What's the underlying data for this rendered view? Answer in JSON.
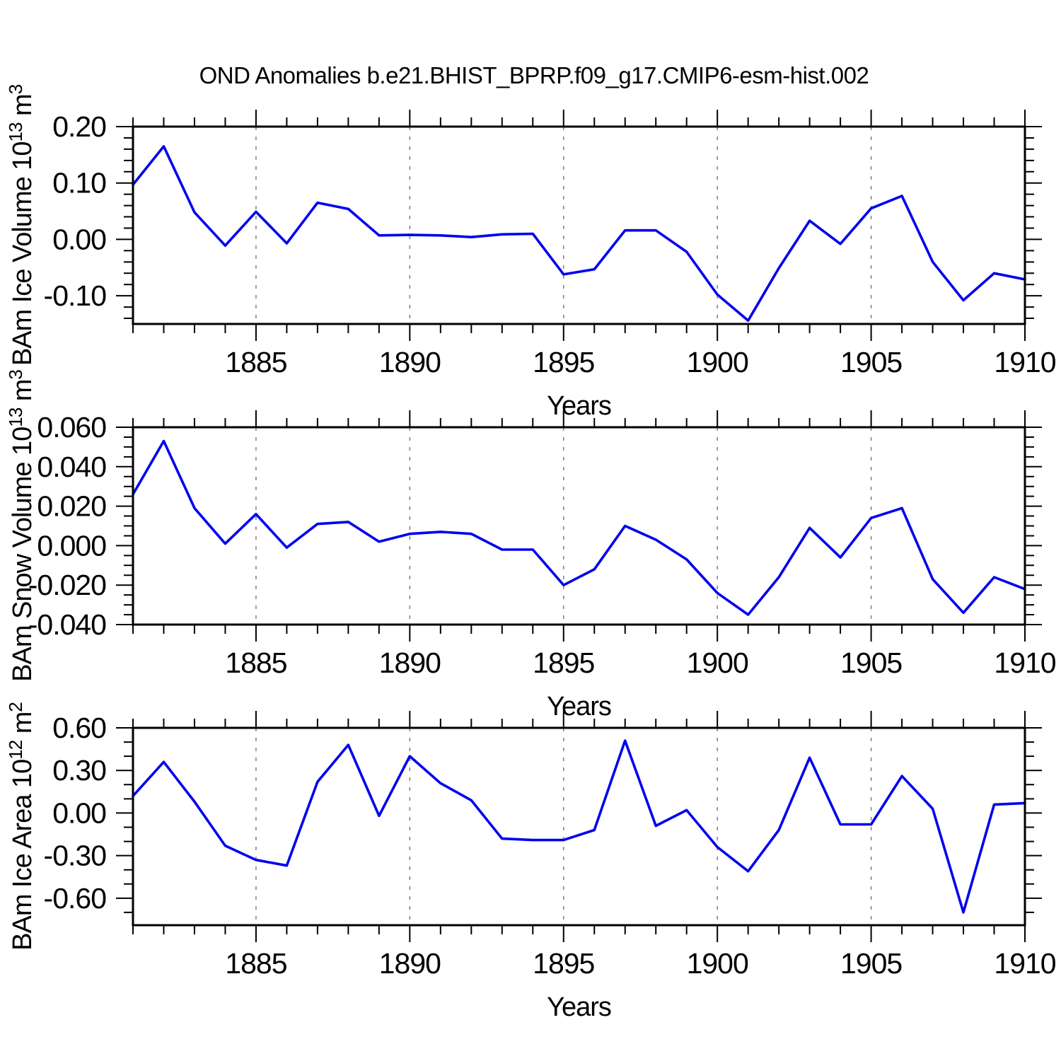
{
  "title": "OND Anomalies b.e21.BHIST_BPRP.f09_g17.CMIP6-esm-hist.002",
  "colors": {
    "line": "#0000EE",
    "grid": "#858585",
    "axis": "#000000",
    "background": "#ffffff"
  },
  "chart_data": [
    {
      "type": "line",
      "name": "ice-volume",
      "ylabel": "BAm Ice Volume 10^13 m^3",
      "ylabel_parts": [
        {
          "t": "BAm Ice Volume 10"
        },
        {
          "t": "13",
          "sup": true
        },
        {
          "t": " m"
        },
        {
          "t": "3",
          "sup": true
        }
      ],
      "xlabel": "Years",
      "xlim": [
        1881,
        1910
      ],
      "ylim": [
        -0.15,
        0.2
      ],
      "grid_x": [
        1885,
        1890,
        1895,
        1900,
        1905
      ],
      "xticks": [
        {
          "v": 1885,
          "label": "1885"
        },
        {
          "v": 1890,
          "label": "1890"
        },
        {
          "v": 1895,
          "label": "1895"
        },
        {
          "v": 1900,
          "label": "1900"
        },
        {
          "v": 1905,
          "label": "1905"
        },
        {
          "v": 1910,
          "label": "1910"
        }
      ],
      "xtick_minor_step": 1,
      "yticks": [
        {
          "v": 0.2,
          "label": "0.20"
        },
        {
          "v": 0.1,
          "label": "0.10"
        },
        {
          "v": 0.0,
          "label": "0.00"
        },
        {
          "v": -0.1,
          "label": "-0.10"
        }
      ],
      "ytick_minor_step": 0.02,
      "x": [
        1881,
        1882,
        1883,
        1884,
        1885,
        1886,
        1887,
        1888,
        1889,
        1890,
        1891,
        1892,
        1893,
        1894,
        1895,
        1896,
        1897,
        1898,
        1899,
        1900,
        1901,
        1902,
        1903,
        1904,
        1905,
        1906,
        1907,
        1908,
        1909,
        1910
      ],
      "values": [
        0.097,
        0.165,
        0.048,
        -0.011,
        0.049,
        -0.007,
        0.065,
        0.054,
        0.007,
        0.008,
        0.007,
        0.004,
        0.009,
        0.01,
        -0.062,
        -0.053,
        0.016,
        0.016,
        -0.022,
        -0.098,
        -0.144,
        -0.051,
        0.033,
        -0.008,
        0.055,
        0.077,
        -0.04,
        -0.108,
        -0.06,
        -0.071
      ]
    },
    {
      "type": "line",
      "name": "snow-volume",
      "ylabel": "BAm Snow Volume 10^13 m^3",
      "ylabel_parts": [
        {
          "t": "BAm Snow Volume 10"
        },
        {
          "t": "13",
          "sup": true
        },
        {
          "t": " m"
        },
        {
          "t": "3",
          "sup": true
        }
      ],
      "xlabel": "Years",
      "xlim": [
        1881,
        1910
      ],
      "ylim": [
        -0.04,
        0.06
      ],
      "grid_x": [
        1885,
        1890,
        1895,
        1900,
        1905
      ],
      "xticks": [
        {
          "v": 1885,
          "label": "1885"
        },
        {
          "v": 1890,
          "label": "1890"
        },
        {
          "v": 1895,
          "label": "1895"
        },
        {
          "v": 1900,
          "label": "1900"
        },
        {
          "v": 1905,
          "label": "1905"
        },
        {
          "v": 1910,
          "label": "1910"
        }
      ],
      "xtick_minor_step": 1,
      "yticks": [
        {
          "v": 0.06,
          "label": "0.060"
        },
        {
          "v": 0.04,
          "label": "0.040"
        },
        {
          "v": 0.02,
          "label": "0.020"
        },
        {
          "v": 0.0,
          "label": "0.000"
        },
        {
          "v": -0.02,
          "label": "-0.020"
        },
        {
          "v": -0.04,
          "label": "-0.040"
        }
      ],
      "ytick_minor_step": 0.005,
      "x": [
        1881,
        1882,
        1883,
        1884,
        1885,
        1886,
        1887,
        1888,
        1889,
        1890,
        1891,
        1892,
        1893,
        1894,
        1895,
        1896,
        1897,
        1898,
        1899,
        1900,
        1901,
        1902,
        1903,
        1904,
        1905,
        1906,
        1907,
        1908,
        1909,
        1910
      ],
      "values": [
        0.026,
        0.053,
        0.019,
        0.001,
        0.016,
        -0.001,
        0.011,
        0.012,
        0.002,
        0.006,
        0.007,
        0.006,
        -0.002,
        -0.002,
        -0.02,
        -0.012,
        0.01,
        0.003,
        -0.007,
        -0.024,
        -0.035,
        -0.016,
        0.009,
        -0.006,
        0.014,
        0.019,
        -0.017,
        -0.034,
        -0.016,
        -0.022
      ]
    },
    {
      "type": "line",
      "name": "ice-area",
      "ylabel": "BAm Ice Area 10^12 m^2",
      "ylabel_parts": [
        {
          "t": "BAm Ice Area 10"
        },
        {
          "t": "12",
          "sup": true
        },
        {
          "t": " m"
        },
        {
          "t": "2",
          "sup": true
        }
      ],
      "xlabel": "Years",
      "xlim": [
        1881,
        1910
      ],
      "ylim": [
        -0.79,
        0.6
      ],
      "grid_x": [
        1885,
        1890,
        1895,
        1900,
        1905
      ],
      "xticks": [
        {
          "v": 1885,
          "label": "1885"
        },
        {
          "v": 1890,
          "label": "1890"
        },
        {
          "v": 1895,
          "label": "1895"
        },
        {
          "v": 1900,
          "label": "1900"
        },
        {
          "v": 1905,
          "label": "1905"
        },
        {
          "v": 1910,
          "label": "1910"
        }
      ],
      "xtick_minor_step": 1,
      "yticks": [
        {
          "v": 0.6,
          "label": "0.60"
        },
        {
          "v": 0.3,
          "label": "0.30"
        },
        {
          "v": 0.0,
          "label": "0.00"
        },
        {
          "v": -0.3,
          "label": "-0.30"
        },
        {
          "v": -0.6,
          "label": "-0.60"
        }
      ],
      "ytick_minor_step": 0.1,
      "x": [
        1881,
        1882,
        1883,
        1884,
        1885,
        1886,
        1887,
        1888,
        1889,
        1890,
        1891,
        1892,
        1893,
        1894,
        1895,
        1896,
        1897,
        1898,
        1899,
        1900,
        1901,
        1902,
        1903,
        1904,
        1905,
        1906,
        1907,
        1908,
        1909,
        1910
      ],
      "values": [
        0.12,
        0.36,
        0.08,
        -0.23,
        -0.33,
        -0.37,
        0.22,
        0.48,
        -0.02,
        0.4,
        0.21,
        0.09,
        -0.18,
        -0.19,
        -0.19,
        -0.12,
        0.51,
        -0.09,
        0.02,
        -0.24,
        -0.41,
        -0.12,
        0.39,
        -0.08,
        -0.08,
        0.26,
        0.03,
        -0.7,
        0.06,
        0.07
      ]
    }
  ]
}
